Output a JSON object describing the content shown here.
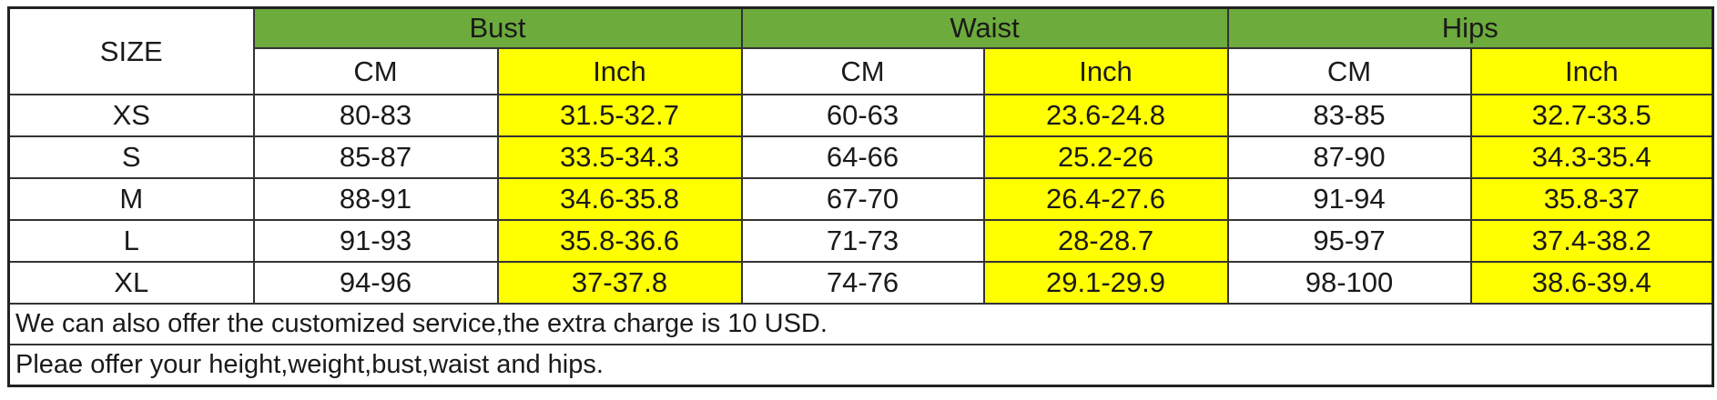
{
  "header": {
    "size_label": "SIZE",
    "groups": [
      "Bust",
      "Waist",
      "Hips"
    ],
    "units": [
      "CM",
      "Inch"
    ]
  },
  "colors": {
    "group_header": "#6cab3c",
    "inch_column": "#ffff00"
  },
  "rows": [
    {
      "size": "XS",
      "cells": [
        "80-83",
        "31.5-32.7",
        "60-63",
        "23.6-24.8",
        "83-85",
        "32.7-33.5"
      ]
    },
    {
      "size": "S",
      "cells": [
        "85-87",
        "33.5-34.3",
        "64-66",
        "25.2-26",
        "87-90",
        "34.3-35.4"
      ]
    },
    {
      "size": "M",
      "cells": [
        "88-91",
        "34.6-35.8",
        "67-70",
        "26.4-27.6",
        "91-94",
        "35.8-37"
      ]
    },
    {
      "size": "L",
      "cells": [
        "91-93",
        "35.8-36.6",
        "71-73",
        "28-28.7",
        "95-97",
        "37.4-38.2"
      ]
    },
    {
      "size": "XL",
      "cells": [
        "94-96",
        "37-37.8",
        "74-76",
        "29.1-29.9",
        "98-100",
        "38.6-39.4"
      ]
    }
  ],
  "notes": [
    "We can also offer the customized service,the extra charge is 10 USD.",
    "Pleae offer your height,weight,bust,waist and hips."
  ]
}
